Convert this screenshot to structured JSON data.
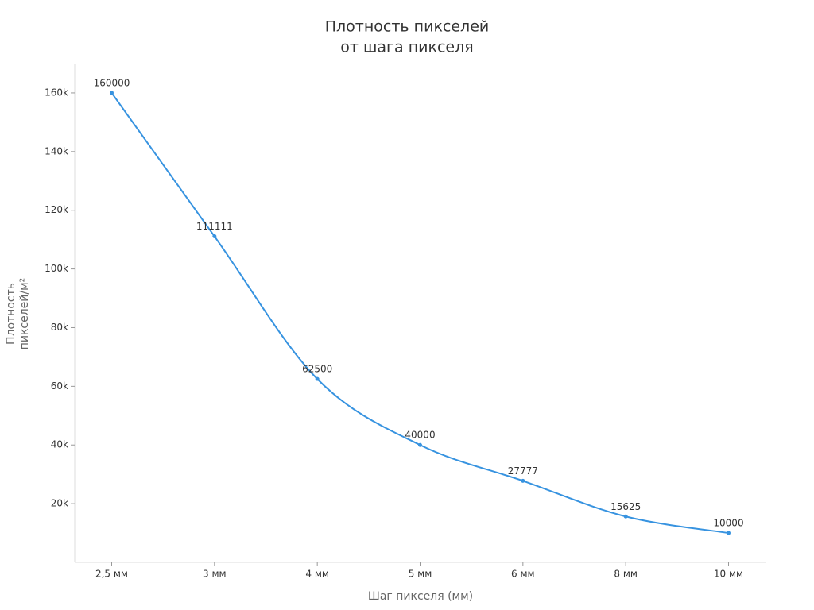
{
  "chart_data": {
    "type": "line",
    "title": [
      "Плотность пикселей",
      "от шага пикселя"
    ],
    "x_label": "Шаг пикселя (мм)",
    "y_label": [
      "Плотность",
      "пикселей/м²"
    ],
    "categories": [
      "2,5 мм",
      "3 мм",
      "4 мм",
      "5 мм",
      "6 мм",
      "8 мм",
      "10 мм"
    ],
    "values": [
      160000,
      111111,
      62500,
      40000,
      27777,
      15625,
      10000
    ],
    "color": "#3793e0",
    "ylim": [
      0,
      170000
    ],
    "yticks": [
      {
        "value": 20000,
        "label": "20k"
      },
      {
        "value": 40000,
        "label": "40k"
      },
      {
        "value": 60000,
        "label": "60k"
      },
      {
        "value": 80000,
        "label": "80k"
      },
      {
        "value": 100000,
        "label": "100k"
      },
      {
        "value": 120000,
        "label": "120k"
      },
      {
        "value": 140000,
        "label": "140k"
      },
      {
        "value": 160000,
        "label": "160k"
      }
    ],
    "grid": false
  }
}
